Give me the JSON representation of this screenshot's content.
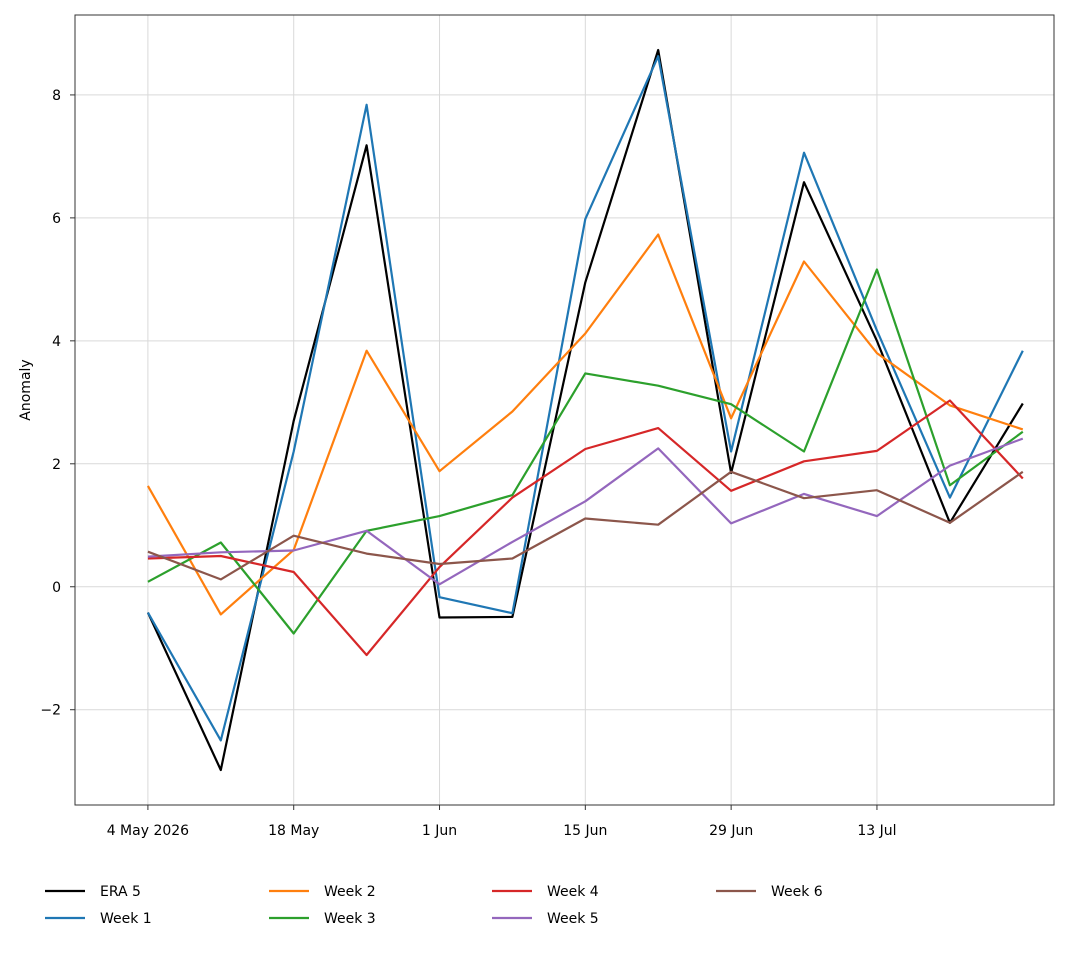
{
  "chart_data": {
    "type": "line",
    "title": "",
    "xlabel": "",
    "ylabel": "Anomaly",
    "x": [
      "2026-05-04",
      "2026-05-11",
      "2026-05-18",
      "2026-05-25",
      "2026-06-01",
      "2026-06-08",
      "2026-06-15",
      "2026-06-22",
      "2026-06-29",
      "2026-07-06",
      "2026-07-13",
      "2026-07-20",
      "2026-07-27"
    ],
    "xticks": [
      {
        "date": "2026-05-04",
        "label": "4 May 2026"
      },
      {
        "date": "2026-05-18",
        "label": "18 May"
      },
      {
        "date": "2026-06-01",
        "label": "1 Jun"
      },
      {
        "date": "2026-06-15",
        "label": "15 Jun"
      },
      {
        "date": "2026-06-29",
        "label": "29 Jun"
      },
      {
        "date": "2026-07-13",
        "label": "13 Jul"
      }
    ],
    "yticks": [
      -2,
      0,
      2,
      4,
      6,
      8
    ],
    "ytick_labels": [
      "−2",
      "0",
      "2",
      "4",
      "6",
      "8"
    ],
    "ylim": [
      -3.55,
      9.3
    ],
    "xlim": [
      "2026-04-27",
      "2026-07-30"
    ],
    "grid": true,
    "legend_position": "bottom",
    "series": [
      {
        "name": "ERA 5",
        "color": "#000000",
        "values": [
          -0.42,
          -2.98,
          2.7,
          7.18,
          -0.5,
          -0.49,
          4.95,
          8.73,
          1.85,
          6.58,
          4.0,
          1.04,
          2.98
        ]
      },
      {
        "name": "Week 1",
        "color": "#1f77b4",
        "values": [
          -0.42,
          -2.5,
          2.2,
          7.84,
          -0.17,
          -0.43,
          5.98,
          8.63,
          2.2,
          7.06,
          4.17,
          1.45,
          3.84
        ]
      },
      {
        "name": "Week 2",
        "color": "#ff7f0e",
        "values": [
          1.64,
          -0.45,
          0.6,
          3.84,
          1.88,
          2.85,
          4.12,
          5.73,
          2.74,
          5.29,
          3.8,
          2.95,
          2.56
        ]
      },
      {
        "name": "Week 3",
        "color": "#2ca02c",
        "values": [
          0.08,
          0.72,
          -0.76,
          0.91,
          1.15,
          1.49,
          3.47,
          3.27,
          2.97,
          2.2,
          5.16,
          1.65,
          2.52
        ]
      },
      {
        "name": "Week 4",
        "color": "#d62728",
        "values": [
          0.46,
          0.5,
          0.24,
          -1.11,
          0.32,
          1.45,
          2.24,
          2.58,
          1.56,
          2.04,
          2.21,
          3.03,
          1.76
        ]
      },
      {
        "name": "Week 5",
        "color": "#9467bd",
        "values": [
          0.49,
          0.56,
          0.59,
          0.91,
          0.04,
          0.73,
          1.39,
          2.25,
          1.03,
          1.51,
          1.15,
          1.97,
          2.41
        ]
      },
      {
        "name": "Week 6",
        "color": "#8c564b",
        "values": [
          0.57,
          0.12,
          0.83,
          0.54,
          0.37,
          0.46,
          1.11,
          1.01,
          1.87,
          1.44,
          1.57,
          1.04,
          1.87
        ]
      }
    ]
  }
}
